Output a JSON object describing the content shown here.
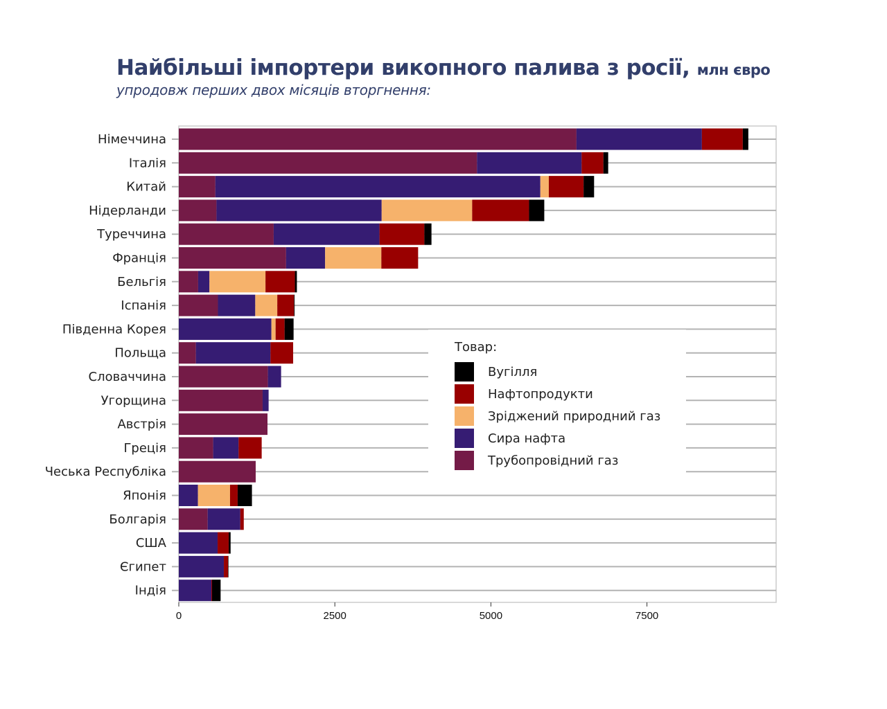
{
  "title": "Найбільші імпортери викопного палива з росії,",
  "title_unit": "млн євро",
  "subtitle": "упродовж перших двох місяців вторгнення:",
  "chart_data": {
    "type": "bar",
    "orientation": "horizontal",
    "stacked": true,
    "title": "Найбільші імпортери викопного палива з росії, млн євро",
    "subtitle": "упродовж перших двох місяців вторгнення:",
    "xlabel": "",
    "ylabel": "",
    "xlim": [
      0,
      9600
    ],
    "xticks": [
      0,
      2500,
      5000,
      7500
    ],
    "grid": true,
    "legend_title": "Товар:",
    "legend_placement": "center-right",
    "categories": [
      "Німеччина",
      "Італія",
      "Китай",
      "Нідерланди",
      "Туреччина",
      "Франція",
      "Бельгія",
      "Іспанія",
      "Південна Корея",
      "Польща",
      "Словаччина",
      "Угорщина",
      "Австрія",
      "Греція",
      "Чеська Республіка",
      "Японія",
      "Болгарія",
      "США",
      "Єгипет",
      "Індія"
    ],
    "series": [
      {
        "name": "Трубопровідний газ",
        "color": "#741b47",
        "values": [
          6371,
          4777,
          586,
          604,
          1520,
          1719,
          310,
          627,
          0,
          274,
          1428,
          1343,
          1421,
          551,
          1232,
          0,
          463,
          0,
          0,
          0
        ]
      },
      {
        "name": "Сира нафта",
        "color": "#361c73",
        "values": [
          2009,
          1676,
          5206,
          2646,
          1695,
          625,
          181,
          598,
          1484,
          1195,
          211,
          96,
          0,
          407,
          0,
          307,
          522,
          622,
          722,
          522
        ]
      },
      {
        "name": "Зріджений природний газ",
        "color": "#f6b26b",
        "values": [
          0,
          0,
          136,
          1450,
          0,
          901,
          898,
          353,
          67,
          0,
          0,
          0,
          0,
          0,
          0,
          514,
          0,
          0,
          0,
          0
        ]
      },
      {
        "name": "Нафтопродукти",
        "color": "#990000",
        "values": [
          655,
          349,
          557,
          911,
          719,
          589,
          471,
          268,
          144,
          363,
          0,
          0,
          0,
          370,
          0,
          122,
          56,
          178,
          67,
          11
        ]
      },
      {
        "name": "Вугілля",
        "color": "#000000",
        "values": [
          89,
          77,
          168,
          244,
          114,
          0,
          32,
          10,
          144,
          0,
          0,
          0,
          0,
          0,
          0,
          229,
          0,
          30,
          7,
          137
        ]
      }
    ],
    "legend_order": [
      "Вугілля",
      "Нафтопродукти",
      "Зріджений природний газ",
      "Сира нафта",
      "Трубопровідний газ"
    ]
  }
}
